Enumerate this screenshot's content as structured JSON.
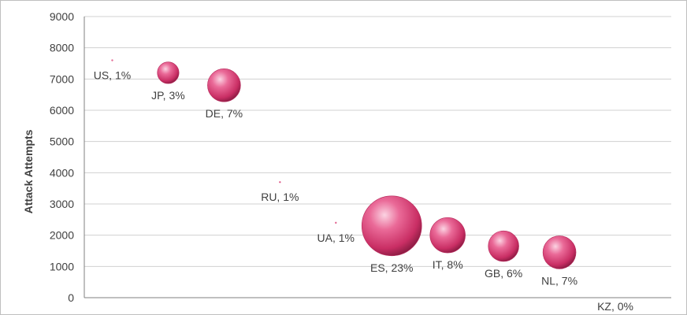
{
  "chart_data": {
    "type": "bubble",
    "title": "",
    "xlabel": "",
    "ylabel": "Attack Attempts",
    "ylim": [
      0,
      9000
    ],
    "y_ticks": [
      0,
      1000,
      2000,
      3000,
      4000,
      5000,
      6000,
      7000,
      8000,
      9000
    ],
    "xlim": [
      0,
      10.5
    ],
    "grid": true,
    "legend": "none",
    "bubble_color": "#e0457b",
    "points": [
      {
        "country": "US",
        "percent": 1,
        "label": "US, 1%",
        "x": 0.5,
        "y": 7600
      },
      {
        "country": "JP",
        "percent": 3,
        "label": "JP, 3%",
        "x": 1.5,
        "y": 7200
      },
      {
        "country": "DE",
        "percent": 7,
        "label": "DE, 7%",
        "x": 2.5,
        "y": 6800
      },
      {
        "country": "RU",
        "percent": 1,
        "label": "RU, 1%",
        "x": 3.5,
        "y": 3700
      },
      {
        "country": "UA",
        "percent": 1,
        "label": "UA, 1%",
        "x": 4.5,
        "y": 2400
      },
      {
        "country": "ES",
        "percent": 23,
        "label": "ES, 23%",
        "x": 5.5,
        "y": 2300
      },
      {
        "country": "IT",
        "percent": 8,
        "label": "IT, 8%",
        "x": 6.5,
        "y": 2000
      },
      {
        "country": "GB",
        "percent": 6,
        "label": "GB, 6%",
        "x": 7.5,
        "y": 1650
      },
      {
        "country": "NL",
        "percent": 7,
        "label": "NL, 7%",
        "x": 8.5,
        "y": 1450
      },
      {
        "country": "KZ",
        "percent": 0,
        "label": "KZ, 0%",
        "x": 9.5,
        "y": 0
      }
    ]
  }
}
